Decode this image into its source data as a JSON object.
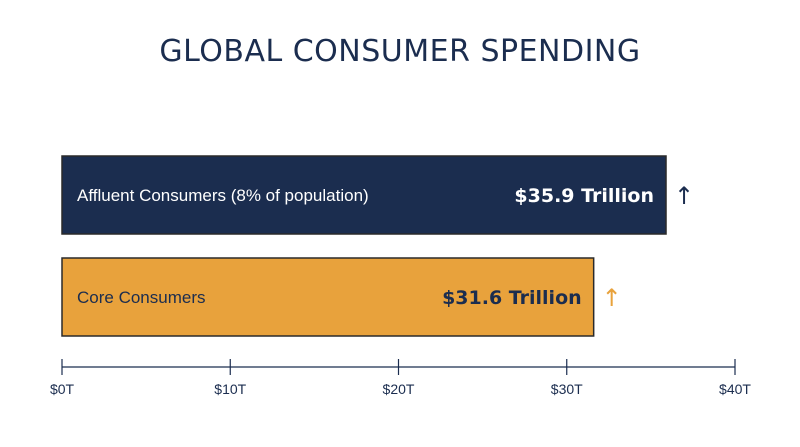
{
  "chart_data": {
    "type": "bar",
    "orientation": "horizontal",
    "title": "GLOBAL CONSUMER SPENDING",
    "categories": [
      "Affluent Consumers (8% of population)",
      "Core Consumers"
    ],
    "values": [
      35.9,
      31.6
    ],
    "value_labels": [
      "$35.9 Trillion",
      "$31.6 Trillion"
    ],
    "trend": [
      "up",
      "up"
    ],
    "trend_symbols": [
      "↑",
      "↑"
    ],
    "bar_colors": [
      "#1b2d4f",
      "#e8a23c"
    ],
    "label_colors": [
      "#ffffff",
      "#1b2d4f"
    ],
    "arrow_colors": [
      "#1b2d4f",
      "#e8a23c"
    ],
    "xlim": [
      0,
      40
    ],
    "xticks": [
      0,
      10,
      20,
      30,
      40
    ],
    "xtick_labels": [
      "$0T",
      "$10T",
      "$20T",
      "$30T",
      "$40T"
    ],
    "xlabel": "",
    "ylabel": "",
    "grid": false,
    "legend": "none"
  }
}
